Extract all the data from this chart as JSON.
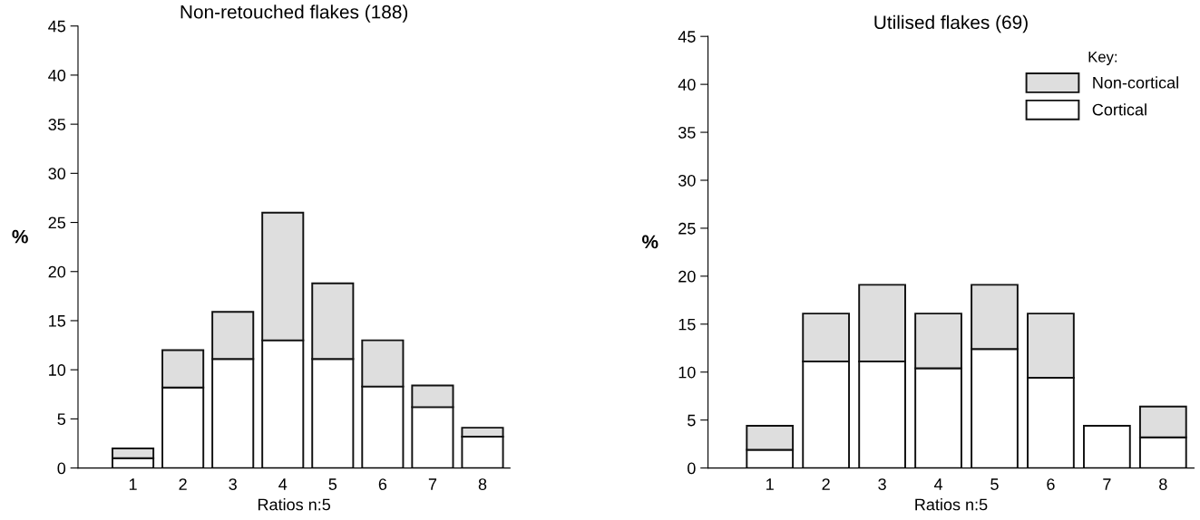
{
  "chart_data": [
    {
      "type": "bar",
      "stacked": true,
      "title": "Non-retouched flakes (188)",
      "xlabel": "Ratios n:5",
      "ylabel": "%",
      "categories": [
        "1",
        "2",
        "3",
        "4",
        "5",
        "6",
        "7",
        "8"
      ],
      "ylim": [
        0,
        45
      ],
      "yticks": [
        0,
        5,
        10,
        15,
        20,
        25,
        30,
        35,
        40,
        45
      ],
      "grid": false,
      "legend": false,
      "series": [
        {
          "color": "#ffffff",
          "values": [
            1.0,
            8.2,
            11.1,
            13.0,
            11.1,
            8.3,
            6.2,
            3.2
          ]
        },
        {
          "color": "#dedede",
          "values": [
            1.0,
            3.8,
            4.8,
            13.0,
            7.7,
            4.7,
            2.2,
            0.9
          ]
        }
      ]
    },
    {
      "type": "bar",
      "stacked": true,
      "title": "Utilised flakes (69)",
      "xlabel": "Ratios n:5",
      "ylabel": "%",
      "categories": [
        "1",
        "2",
        "3",
        "4",
        "5",
        "6",
        "7",
        "8"
      ],
      "ylim": [
        0,
        45
      ],
      "yticks": [
        0,
        5,
        10,
        15,
        20,
        25,
        30,
        35,
        40,
        45
      ],
      "grid": false,
      "legend": "top right",
      "legend_title": "Key:",
      "series": [
        {
          "name": "Cortical",
          "color": "#ffffff",
          "values": [
            1.9,
            11.1,
            11.1,
            10.4,
            12.4,
            9.4,
            4.4,
            3.2
          ]
        },
        {
          "name": "Non-cortical",
          "color": "#dedede",
          "values": [
            2.5,
            5.0,
            8.0,
            5.7,
            6.7,
            6.7,
            null,
            3.2
          ]
        }
      ]
    }
  ]
}
